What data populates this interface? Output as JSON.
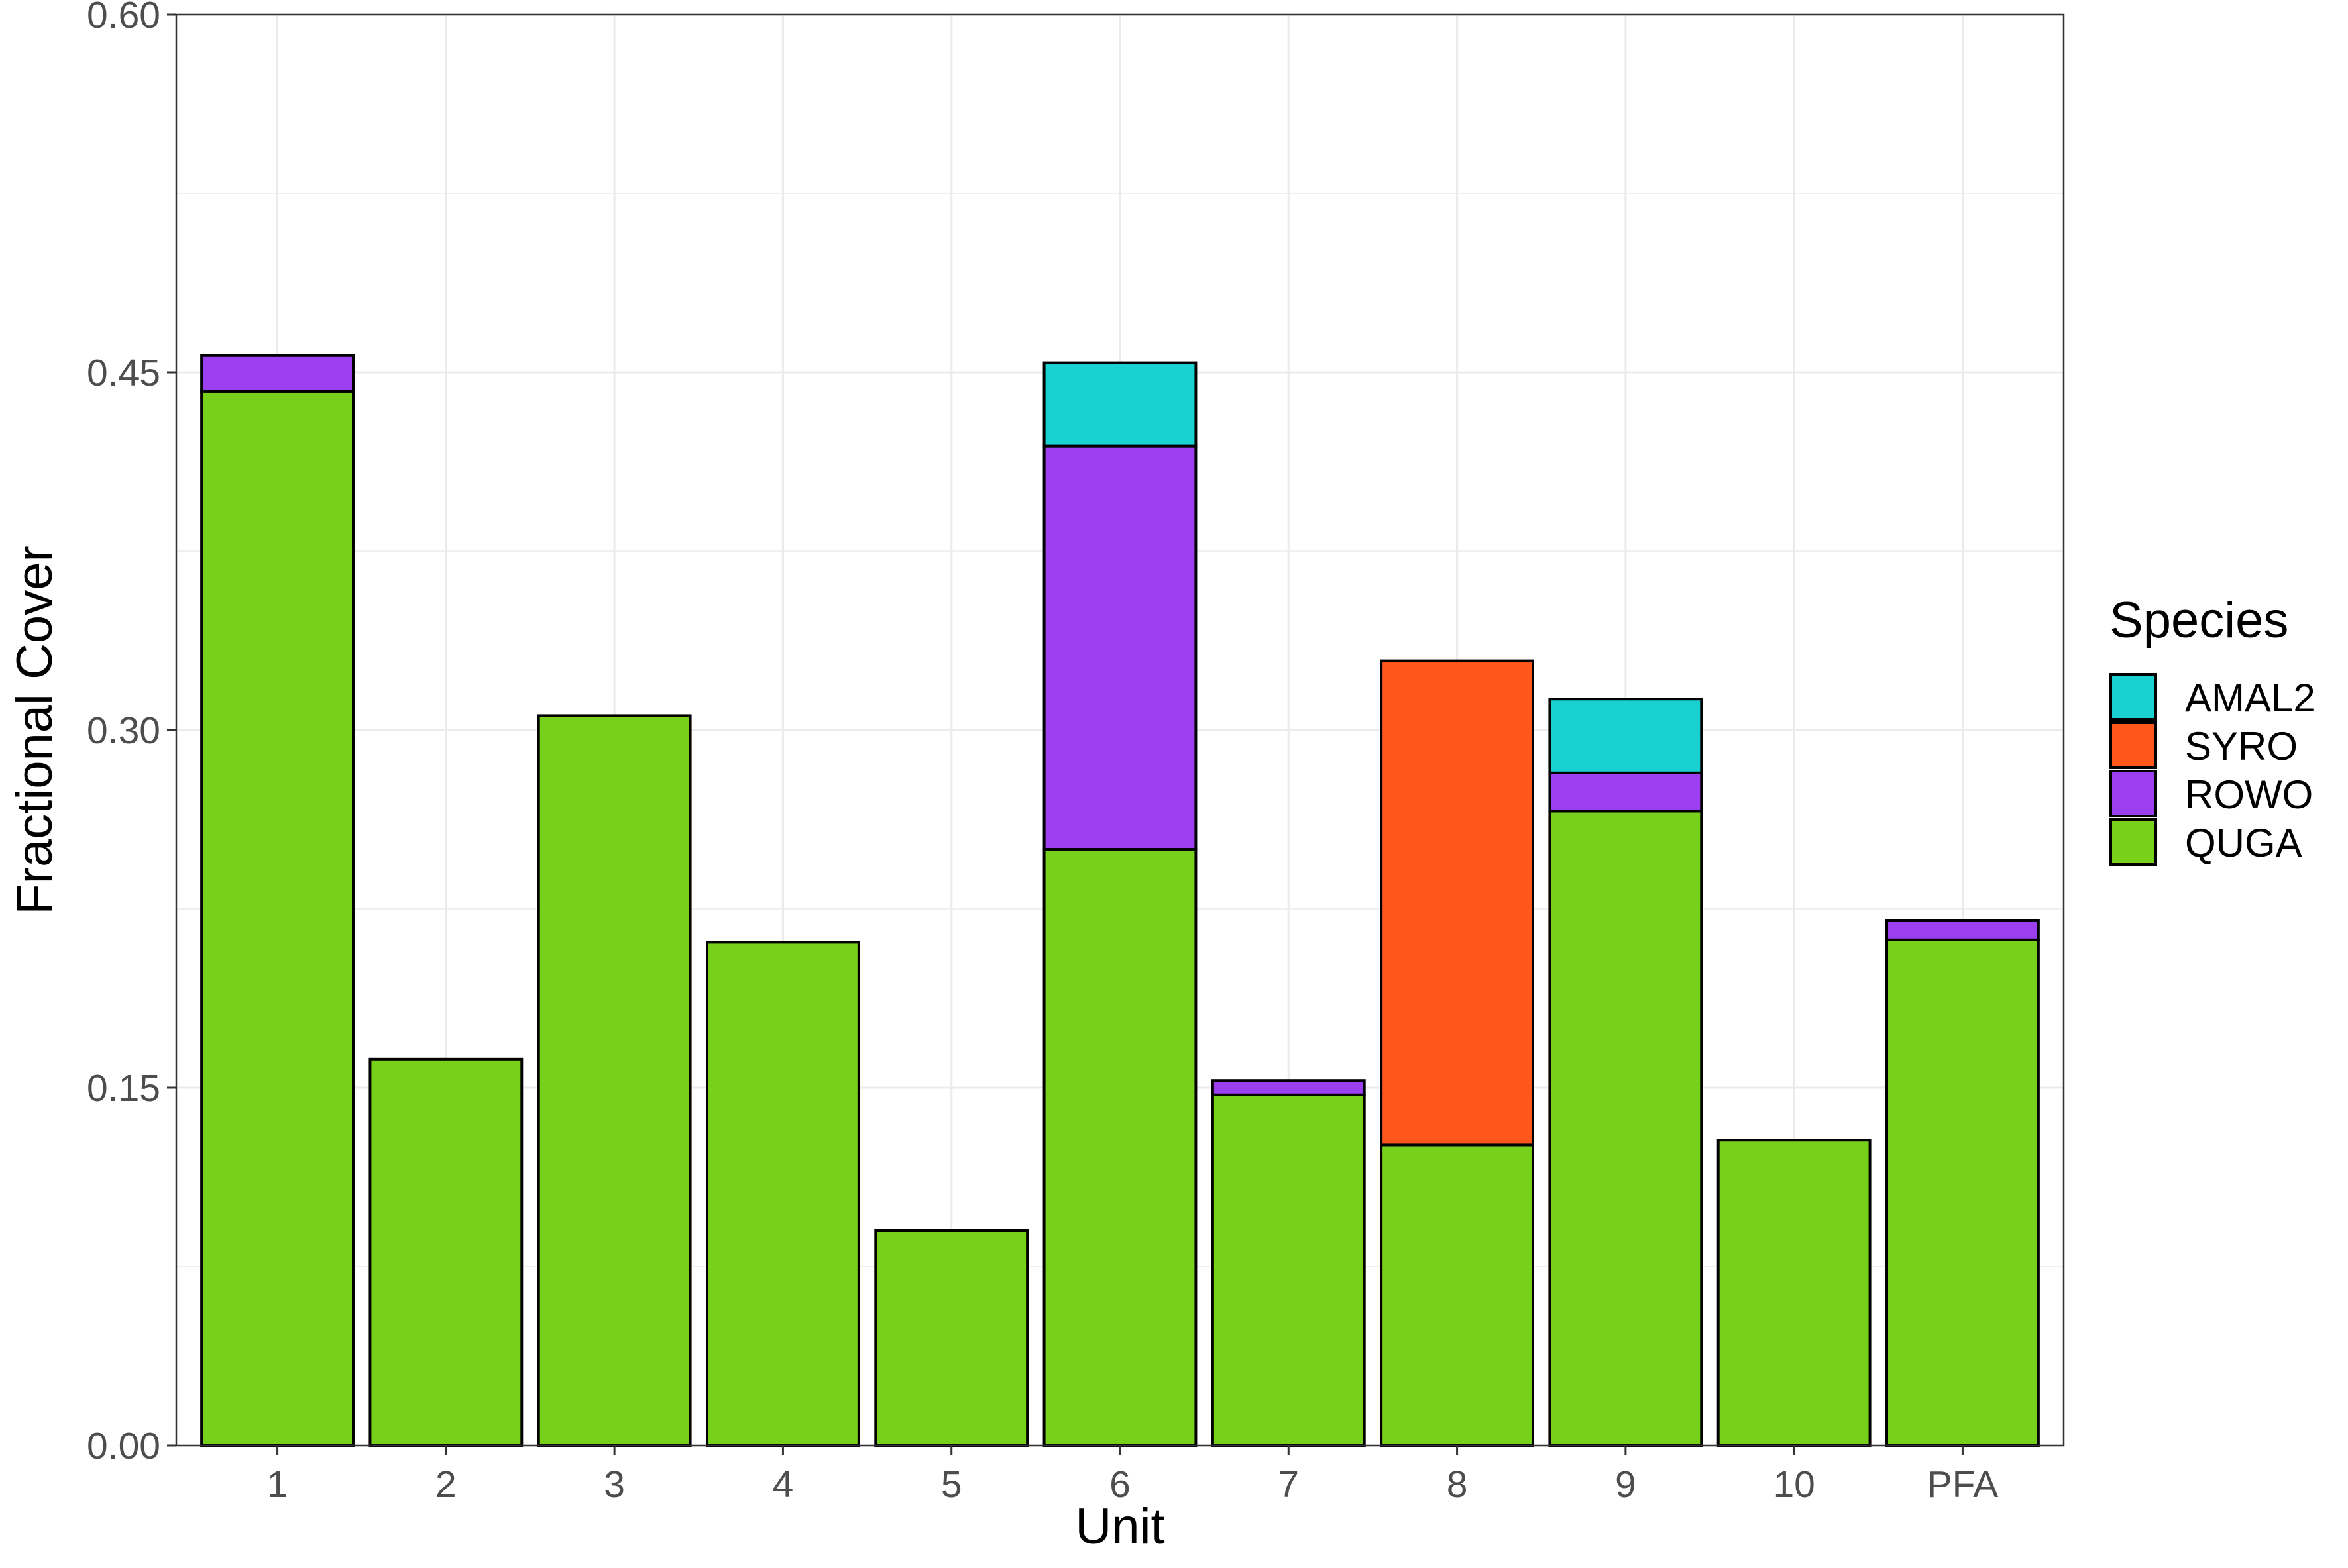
{
  "chart_data": {
    "type": "bar",
    "stacked": true,
    "title": "",
    "xlabel": "Unit",
    "ylabel": "Fractional Cover",
    "categories": [
      "1",
      "2",
      "3",
      "4",
      "5",
      "6",
      "7",
      "8",
      "9",
      "10",
      "PFA"
    ],
    "ylim": [
      0,
      0.6
    ],
    "yticks": [
      "0.00",
      "0.15",
      "0.30",
      "0.45",
      "0.60"
    ],
    "ytick_values": [
      0,
      0.15,
      0.3,
      0.45,
      0.6
    ],
    "grid": true,
    "legend": {
      "title": "Species",
      "position": "right",
      "entries": [
        "AMAL2",
        "SYRO",
        "ROWO",
        "QUGA"
      ]
    },
    "series": [
      {
        "name": "QUGA",
        "color": "#77d11a",
        "values": [
          0.442,
          0.162,
          0.306,
          0.211,
          0.09,
          0.25,
          0.147,
          0.126,
          0.266,
          0.128,
          0.212
        ]
      },
      {
        "name": "ROWO",
        "color": "#9b3ff0",
        "values": [
          0.015,
          0,
          0,
          0,
          0,
          0.169,
          0.006,
          0,
          0.016,
          0,
          0.008
        ]
      },
      {
        "name": "SYRO",
        "color": "#ff561c",
        "values": [
          0,
          0,
          0,
          0,
          0,
          0,
          0,
          0.203,
          0,
          0,
          0
        ]
      },
      {
        "name": "AMAL2",
        "color": "#1ad1d1",
        "values": [
          0,
          0,
          0,
          0,
          0,
          0.035,
          0,
          0,
          0.031,
          0,
          0
        ]
      }
    ]
  }
}
